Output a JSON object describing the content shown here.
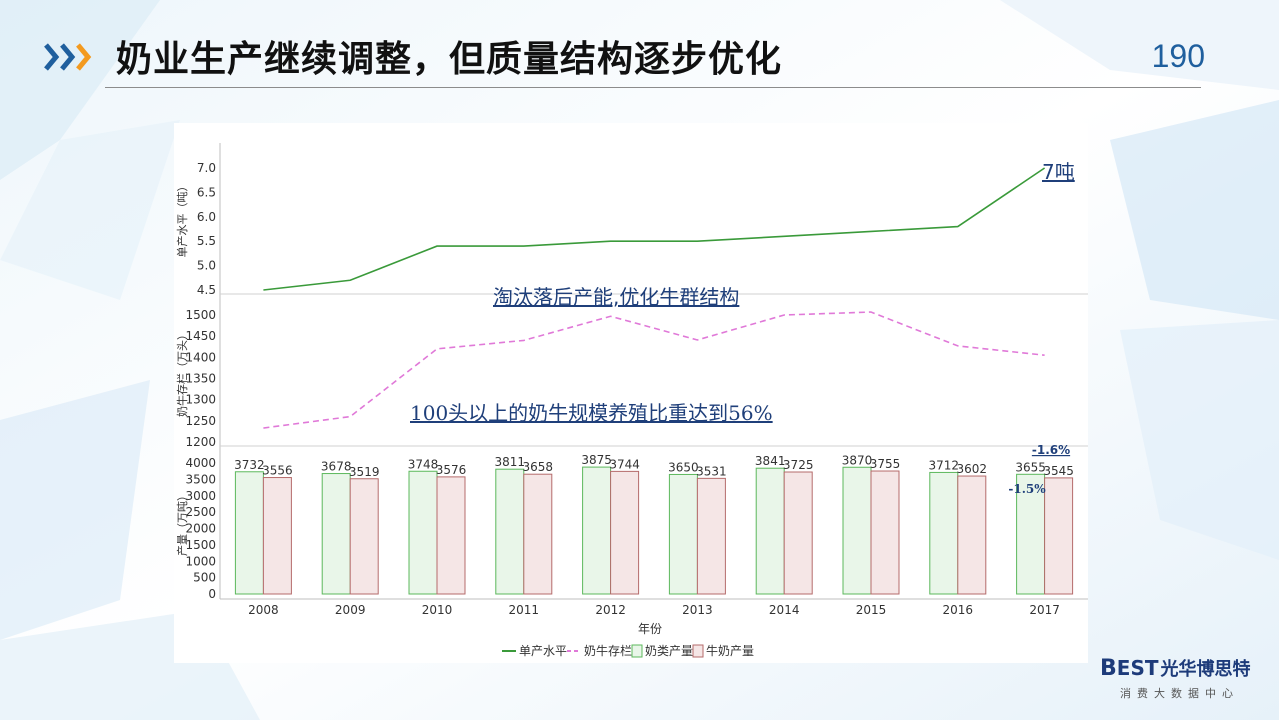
{
  "header": {
    "title": "奶业生产继续调整，但质量结构逐步优化",
    "page_number": "190"
  },
  "logo": {
    "brand": "EST",
    "brand_initial": "B",
    "brand_cn": "光华博思特",
    "tagline": "消费大数据中心"
  },
  "colors": {
    "accent_blue": "#1f5f9e",
    "accent_orange": "#f39a1f",
    "line_yield": "#3a9a3a",
    "line_stock": "#e079d8",
    "bar_dairy": "#5cb85c",
    "bar_milk": "#b56b6b",
    "annotation": "#1f3f7a"
  },
  "chart_data": {
    "type": "bar",
    "xlabel": "年份",
    "categories": [
      "2008",
      "2009",
      "2010",
      "2011",
      "2012",
      "2013",
      "2014",
      "2015",
      "2016",
      "2017"
    ],
    "panels": {
      "yield": {
        "ylabel": "单产水平（吨）",
        "ylim": [
          4.5,
          7.0
        ],
        "ticks": [
          "7.0",
          "6.5",
          "6.0",
          "5.5",
          "5.0",
          "4.5"
        ]
      },
      "stock": {
        "ylabel": "奶牛存栏（万头）",
        "ylim": [
          1200,
          1500
        ],
        "ticks": [
          "1500",
          "1450",
          "1400",
          "1350",
          "1300",
          "1250",
          "1200"
        ]
      },
      "production": {
        "ylabel": "产量（万吨）",
        "ylim": [
          0,
          4000
        ],
        "ticks": [
          "4000",
          "3500",
          "3000",
          "2500",
          "2000",
          "1500",
          "1000",
          "500",
          "0"
        ]
      }
    },
    "series": [
      {
        "name": "单产水平",
        "kind": "line",
        "panel": "yield",
        "values": [
          4.5,
          4.7,
          5.4,
          5.4,
          5.5,
          5.5,
          5.6,
          5.7,
          5.8,
          7.0
        ]
      },
      {
        "name": "奶牛存栏",
        "kind": "dashed-line",
        "panel": "stock",
        "values": [
          1233,
          1260,
          1420,
          1440,
          1497,
          1441,
          1500,
          1507,
          1427,
          1405
        ]
      },
      {
        "name": "奶类产量",
        "kind": "bar",
        "panel": "production",
        "values": [
          3732,
          3678,
          3748,
          3811,
          3875,
          3650,
          3841,
          3870,
          3712,
          3655
        ]
      },
      {
        "name": "牛奶产量",
        "kind": "bar",
        "panel": "production",
        "values": [
          3556,
          3519,
          3576,
          3658,
          3744,
          3531,
          3725,
          3755,
          3602,
          3545
        ]
      }
    ],
    "annotations": [
      {
        "text": "7吨",
        "panel": "yield"
      },
      {
        "text": "淘汰落后产能,优化牛群结构",
        "panel": "stock"
      },
      {
        "text": "100头以上的奶牛规模养殖比重达到56%",
        "panel": "stock"
      },
      {
        "text": "-1.6%",
        "panel": "production"
      },
      {
        "text": "-1.5%",
        "panel": "production"
      }
    ],
    "legend": "bottom",
    "grid": false
  }
}
